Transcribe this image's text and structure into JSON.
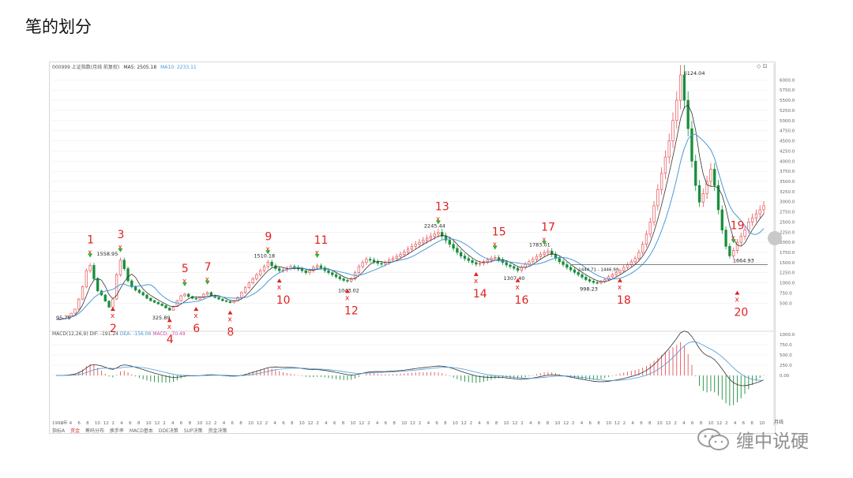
{
  "title": "笔的划分",
  "chart_header": {
    "symbol_text": "000999 上证指数(月线 前复权)",
    "ma5_label": "MA5: 2505.18",
    "ma10_label": "MA10: 2233.11"
  },
  "macd_header": {
    "indicator": "MACD(12,26,9)",
    "dif": "DIF: -191.24",
    "dea": "DEA: -156.06",
    "macd": "MACD: -70.49"
  },
  "tabs": [
    "指标A",
    "资金",
    "筹码分布",
    "换手率",
    "MACD基本",
    "DDE决策",
    "SUP决策",
    "资金决策"
  ],
  "watermark": "缠中说硬",
  "period_label": "月线",
  "colors": {
    "up": "#e8535a",
    "down": "#1a8f3c",
    "ma5": "#333333",
    "ma10": "#4a9ad8",
    "annotation": "#e02020",
    "green_arrow": "#2db52d"
  },
  "chart_data": {
    "type": "candlestick",
    "title": "",
    "xlabel": "",
    "ylabel": "",
    "ylim": [
      0,
      6124.04
    ],
    "y_ticks": [
      "6000.0",
      "5750.0",
      "5500.0",
      "5250.0",
      "5000.0",
      "4750.0",
      "4500.0",
      "4250.0",
      "4000.0",
      "3750.0",
      "3500.0",
      "3250.0",
      "3000.0",
      "2750.0",
      "2500.0",
      "2250.0",
      "2000.0",
      "1750.0",
      "1500.0",
      "1250.0",
      "1000.0",
      "750.0",
      "500.0"
    ],
    "x_ticks": [
      "1990年",
      "2",
      "4",
      "6",
      "8",
      "10",
      "12",
      "2",
      "4",
      "6",
      "8",
      "10",
      "12",
      "2",
      "4",
      "6",
      "8",
      "10",
      "12",
      "2",
      "4",
      "6",
      "8",
      "10",
      "12",
      "2",
      "4",
      "6",
      "8",
      "10",
      "12",
      "2",
      "4",
      "6",
      "8",
      "10",
      "12",
      "2",
      "4",
      "6",
      "8",
      "10",
      "12",
      "2",
      "4",
      "6",
      "8",
      "10",
      "12",
      "2",
      "4",
      "6",
      "8",
      "10",
      "12",
      "2",
      "4",
      "6",
      "8",
      "10",
      "12",
      "2",
      "4",
      "6",
      "8",
      "10",
      "12",
      "2",
      "4",
      "6",
      "8",
      "10",
      "12",
      "2",
      "4",
      "6",
      "8",
      "10",
      "12",
      "2",
      "4",
      "6",
      "8",
      "10"
    ],
    "price_path": [
      95.79,
      110,
      130,
      180,
      250,
      350,
      600,
      900,
      1300,
      1429,
      1100,
      800,
      700,
      550,
      400,
      600,
      1200,
      1558.95,
      1350,
      1050,
      900,
      820,
      760,
      700,
      620,
      560,
      520,
      480,
      440,
      380,
      325.89,
      420,
      560,
      680,
      720,
      660,
      620,
      600,
      640,
      720,
      760,
      690,
      640,
      600,
      560,
      540,
      512.83,
      560,
      640,
      760,
      880,
      1000,
      1100,
      1200,
      1300,
      1400,
      1510.18,
      1420,
      1350,
      1300,
      1320,
      1360,
      1400,
      1380,
      1340,
      1300,
      1250,
      1300,
      1380,
      1420,
      1370,
      1300,
      1250,
      1200,
      1150,
      1100,
      1060,
      1043.02,
      1100,
      1250,
      1400,
      1500,
      1580,
      1560,
      1520,
      1480,
      1460,
      1500,
      1560,
      1600,
      1650,
      1700,
      1760,
      1830,
      1900,
      1950,
      2000,
      2050,
      2100,
      2150,
      2200,
      2245.44,
      2150,
      2050,
      1950,
      1850,
      1750,
      1660,
      1600,
      1550,
      1500,
      1460,
      1480,
      1520,
      1560,
      1600,
      1620,
      1570,
      1500,
      1440,
      1400,
      1360,
      1307.4,
      1380,
      1460,
      1520,
      1580,
      1650,
      1700,
      1740,
      1783.01,
      1700,
      1600,
      1520,
      1450,
      1380,
      1320,
      1260,
      1200,
      1140,
      1080,
      1040,
      1010,
      998.23,
      1030,
      1080,
      1150,
      1200,
      1250,
      1300,
      1380,
      1450,
      1520,
      1600,
      1750,
      1950,
      2200,
      2500,
      2900,
      3300,
      3700,
      4100,
      4500,
      5000,
      5500,
      6124.04,
      5500,
      4800,
      4000,
      3400,
      2990,
      3200,
      3500,
      3800,
      3400,
      2800,
      2300,
      1900,
      1664.93,
      1800,
      2000,
      2150,
      2300,
      2500,
      2600,
      2700,
      2800,
      2900
    ],
    "annotated_values": [
      "95.79",
      "1558.95",
      "325.89",
      "1510.18",
      "1043.02",
      "2245.44",
      "1783.01",
      "1307.40",
      "998.23",
      "6124.04",
      "1664.93",
      "1444.71 - 1446.99"
    ],
    "stroke_labels": [
      "1",
      "2",
      "3",
      "4",
      "5",
      "6",
      "7",
      "8",
      "9",
      "10",
      "11",
      "12",
      "13",
      "14",
      "15",
      "16",
      "17",
      "18",
      "19",
      "20"
    ],
    "macd": {
      "ylim": [
        -1000,
        1000
      ],
      "y_ticks": [
        "1000.0",
        "750.0",
        "500.0",
        "250.0",
        "0.00"
      ]
    }
  }
}
